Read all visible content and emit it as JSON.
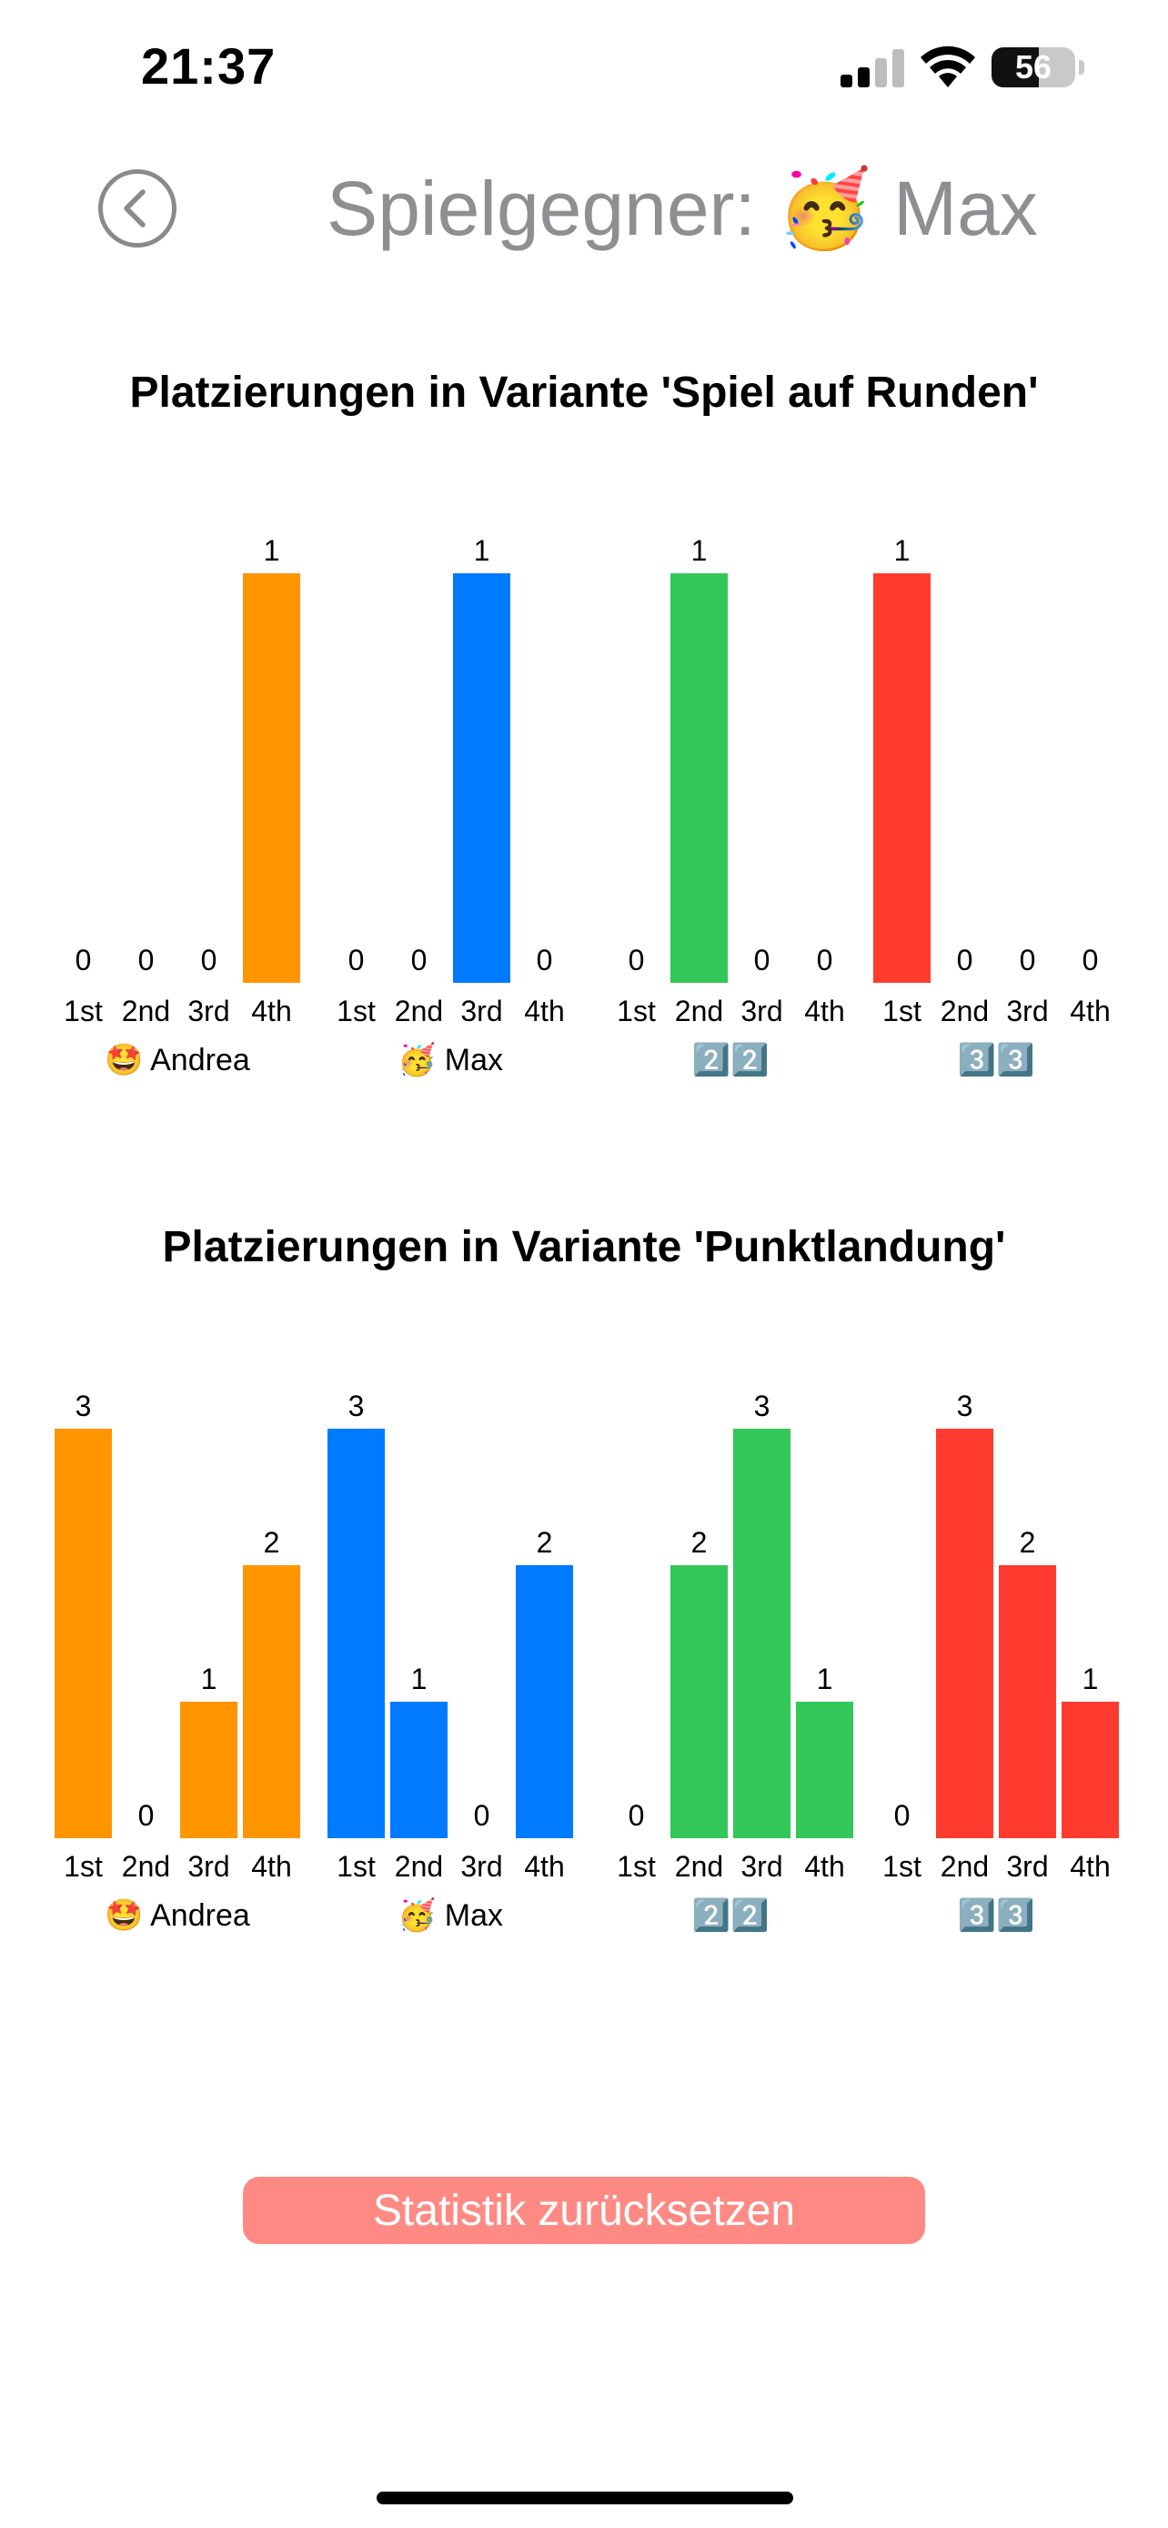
{
  "status_bar": {
    "time": "21:37",
    "battery_percent": "56",
    "battery_level": 0.56,
    "signal_bars_active": 2,
    "signal_bars_total": 4
  },
  "header": {
    "title": "Spielgegner: 🥳 Max",
    "back_icon": "chevron-left-circle-icon"
  },
  "colors": {
    "orange": "#ff9500",
    "blue": "#007aff",
    "green": "#34c759",
    "red": "#ff3b30",
    "reset_button_bg": "#ff8a84",
    "title_gray": "#8e8e93"
  },
  "chart_data": [
    {
      "type": "bar",
      "title": "Platzierungen in Variante 'Spiel auf Runden'",
      "categories": [
        "1st",
        "2nd",
        "3rd",
        "4th"
      ],
      "series": [
        {
          "name": "🤩 Andrea",
          "color": "#ff9500",
          "values": [
            0,
            0,
            0,
            1
          ]
        },
        {
          "name": "🥳 Max",
          "color": "#007aff",
          "values": [
            0,
            0,
            1,
            0
          ]
        },
        {
          "name": "2️⃣2️⃣",
          "color": "#34c759",
          "values": [
            0,
            1,
            0,
            0
          ]
        },
        {
          "name": "3️⃣3️⃣",
          "color": "#ff3b30",
          "values": [
            1,
            0,
            0,
            0
          ]
        }
      ],
      "ylim": [
        0,
        1
      ],
      "grid": false
    },
    {
      "type": "bar",
      "title": "Platzierungen in Variante 'Punktlandung'",
      "categories": [
        "1st",
        "2nd",
        "3rd",
        "4th"
      ],
      "series": [
        {
          "name": "🤩 Andrea",
          "color": "#ff9500",
          "values": [
            3,
            0,
            1,
            2
          ]
        },
        {
          "name": "🥳 Max",
          "color": "#007aff",
          "values": [
            3,
            1,
            0,
            2
          ]
        },
        {
          "name": "2️⃣2️⃣",
          "color": "#34c759",
          "values": [
            0,
            2,
            3,
            1
          ]
        },
        {
          "name": "3️⃣3️⃣",
          "color": "#ff3b30",
          "values": [
            0,
            3,
            2,
            1
          ]
        }
      ],
      "ylim": [
        0,
        3
      ],
      "grid": false
    }
  ],
  "actions": {
    "reset_label": "Statistik zurücksetzen"
  }
}
